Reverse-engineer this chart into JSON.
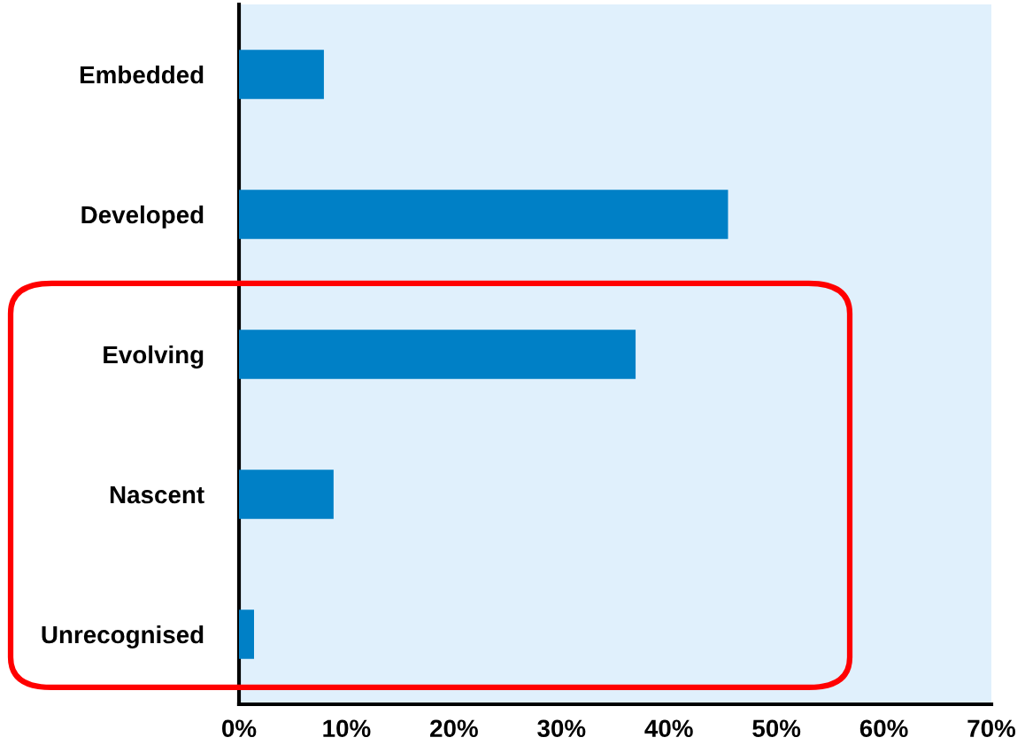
{
  "chart_data": {
    "type": "bar",
    "orientation": "horizontal",
    "categories": [
      "Embedded",
      "Developed",
      "Evolving",
      "Nascent",
      "Unrecognised"
    ],
    "values": [
      7.9,
      45.5,
      36.9,
      8.8,
      1.4
    ],
    "color": "#0080c6",
    "xlim": [
      0,
      70
    ],
    "xticks": [
      {
        "value": 0,
        "label": "0%"
      },
      {
        "value": 10,
        "label": "10%"
      },
      {
        "value": 20,
        "label": "20%"
      },
      {
        "value": 30,
        "label": "30%"
      },
      {
        "value": 40,
        "label": "40%"
      },
      {
        "value": 50,
        "label": "50%"
      },
      {
        "value": 60,
        "label": "60%"
      },
      {
        "value": 70,
        "label": "70%"
      }
    ],
    "grid": false
  }
}
